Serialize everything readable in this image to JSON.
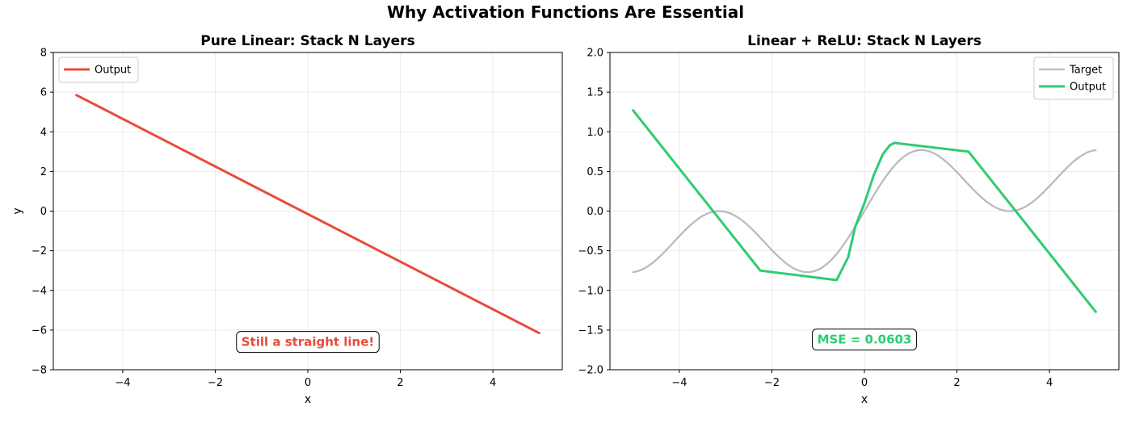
{
  "figure": {
    "title": "Why Activation Functions Are Essential"
  },
  "chart_data": [
    {
      "type": "line",
      "title": "Pure Linear: Stack N Layers",
      "xlabel": "x",
      "ylabel": "y",
      "xlim": [
        -5.5,
        5.5
      ],
      "ylim": [
        -8,
        8
      ],
      "xticks": [
        -4,
        -2,
        0,
        2,
        4
      ],
      "yticks": [
        -8,
        -6,
        -4,
        -2,
        0,
        2,
        4,
        6,
        8
      ],
      "grid": true,
      "legend_position": "upper-left",
      "series": [
        {
          "name": "Output",
          "color": "#e74c3c",
          "x": [
            -5,
            5
          ],
          "y": [
            5.85,
            -6.15
          ]
        }
      ],
      "annotation": {
        "text": "Still a straight line!",
        "x": 0,
        "y": -6.6,
        "color": "#e74c3c"
      }
    },
    {
      "type": "line",
      "title": "Linear + ReLU: Stack N Layers",
      "xlabel": "x",
      "ylabel": "",
      "xlim": [
        -5.5,
        5.5
      ],
      "ylim": [
        -2.0,
        2.0
      ],
      "xticks": [
        -4,
        -2,
        0,
        2,
        4
      ],
      "yticks": [
        -2.0,
        -1.5,
        -1.0,
        -0.5,
        0.0,
        0.5,
        1.0,
        1.5,
        2.0
      ],
      "grid": true,
      "legend_position": "upper-right",
      "series": [
        {
          "name": "Target",
          "color": "#bbbbbb",
          "function": "sin(x) * cos(x/2)",
          "x_range": [
            -5,
            5
          ]
        },
        {
          "name": "Output",
          "color": "#2ecc71",
          "x": [
            -5,
            -2.25,
            -0.6,
            -0.35,
            -0.2,
            0.0,
            0.2,
            0.4,
            0.55,
            0.65,
            2.25,
            5
          ],
          "y": [
            1.27,
            -0.75,
            -0.87,
            -0.58,
            -0.2,
            0.1,
            0.45,
            0.72,
            0.83,
            0.86,
            0.75,
            -1.27
          ]
        }
      ],
      "annotation": {
        "text": "MSE = 0.0603",
        "x": 0,
        "y": -1.62,
        "color": "#2ecc71"
      }
    }
  ]
}
